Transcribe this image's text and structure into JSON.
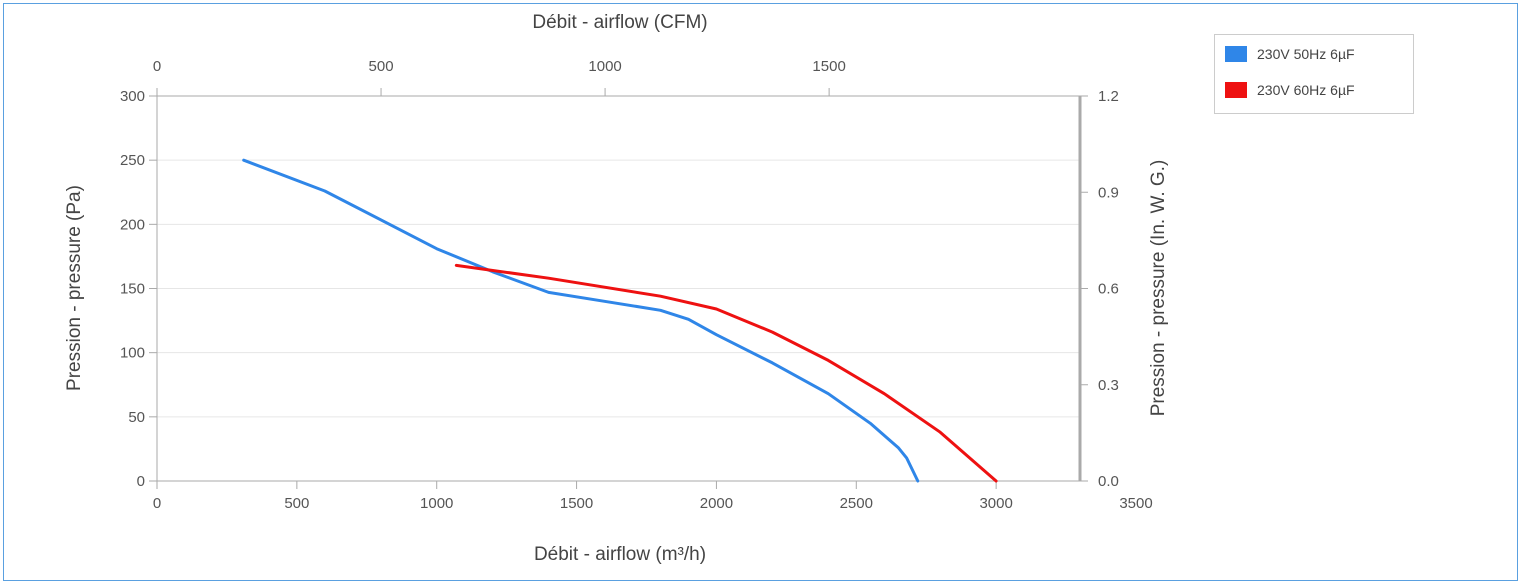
{
  "chart_data": {
    "type": "line",
    "x_bottom": {
      "label": "Débit - airflow (m³/h)",
      "range": [
        0,
        3500
      ],
      "ticks": [
        0,
        500,
        1000,
        1500,
        2000,
        2500,
        3000,
        3500
      ]
    },
    "x_top": {
      "label": "Débit - airflow (CFM)",
      "range": [
        0,
        2059.9
      ],
      "ticks": [
        0,
        500,
        1000,
        1500
      ]
    },
    "y_left": {
      "label": "Pression - pressure (Pa)",
      "range": [
        0,
        300
      ],
      "ticks": [
        0,
        50,
        100,
        150,
        200,
        250,
        300
      ]
    },
    "y_right": {
      "label": "Pression - pressure (In. W. G.)",
      "range": [
        0.0,
        1.2
      ],
      "ticks": [
        "0.0",
        "0.3",
        "0.6",
        "0.9",
        "1.2"
      ]
    },
    "grid": true,
    "legend_position": "top-right",
    "series": [
      {
        "name": "230V 50Hz 6µF",
        "color": "#2f86e8",
        "points": [
          [
            310,
            250
          ],
          [
            600,
            226
          ],
          [
            1000,
            181
          ],
          [
            1200,
            163
          ],
          [
            1400,
            147
          ],
          [
            1600,
            140
          ],
          [
            1800,
            133
          ],
          [
            1900,
            126
          ],
          [
            2000,
            114
          ],
          [
            2200,
            92
          ],
          [
            2400,
            68
          ],
          [
            2550,
            45
          ],
          [
            2650,
            26
          ],
          [
            2680,
            18
          ],
          [
            2720,
            0
          ]
        ]
      },
      {
        "name": "230V 60Hz 6µF",
        "color": "#ee1111",
        "points": [
          [
            1070,
            168
          ],
          [
            1400,
            158
          ],
          [
            1800,
            144
          ],
          [
            2000,
            134
          ],
          [
            2200,
            116
          ],
          [
            2400,
            94
          ],
          [
            2600,
            68
          ],
          [
            2800,
            38
          ],
          [
            3000,
            0
          ]
        ]
      }
    ]
  }
}
